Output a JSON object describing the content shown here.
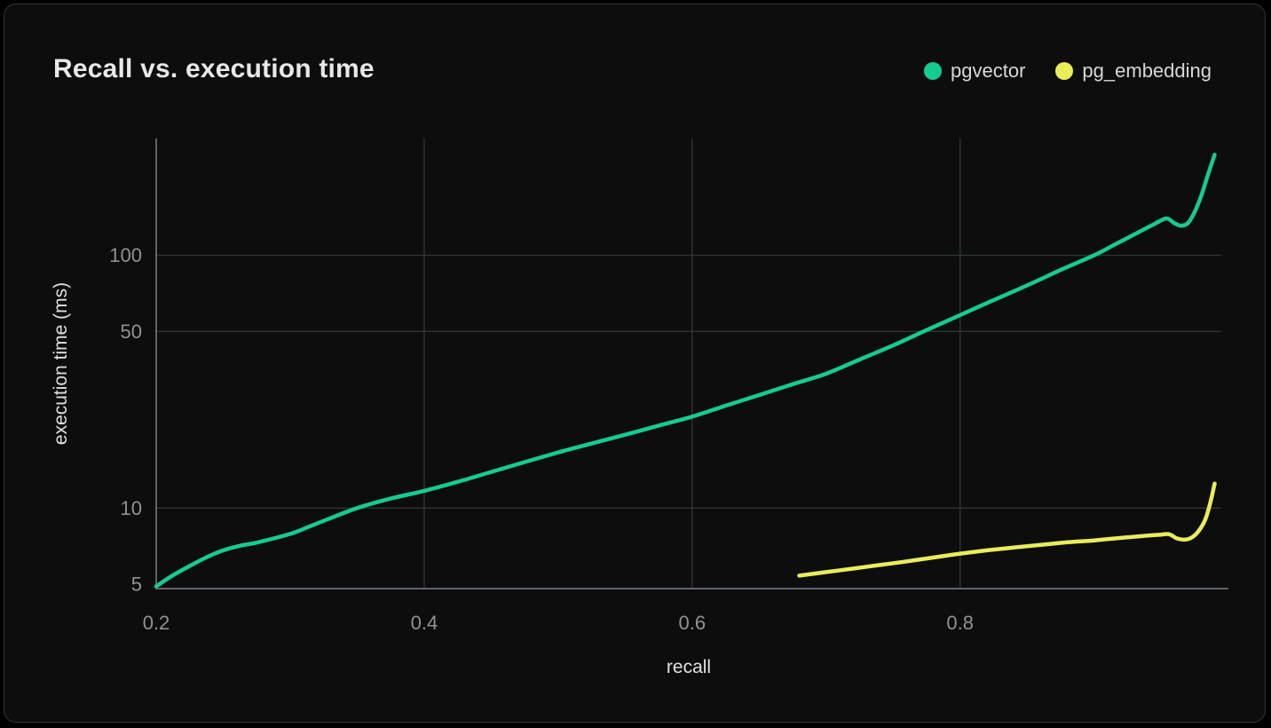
{
  "colors": {
    "page_background": "#000000",
    "card_background": "#0C0D0C",
    "card_border": "#323538",
    "title_text": "#E7E8E7",
    "legend_text": "#D6D8D7",
    "tick_text": "#8E9394",
    "axis_title_text": "#DFE1E0",
    "gridline": "#2F3437",
    "axis_line": "#5E646A",
    "pgvector_green": "#15CB92",
    "pg_embedding_yellow": "#EAED57"
  },
  "chart_data": {
    "type": "line",
    "title": "Recall vs. execution time",
    "xlabel": "recall",
    "ylabel": "execution time (ms)",
    "x_scale": "linear",
    "y_scale": "log",
    "xlim": [
      0.2,
      0.995
    ],
    "ylim": [
      4.8,
      290
    ],
    "x_ticks": [
      0.2,
      0.4,
      0.6,
      0.8
    ],
    "y_ticks": [
      5,
      10,
      50,
      100
    ],
    "x_gridlines": [
      0.4,
      0.6,
      0.8
    ],
    "y_gridlines": [
      10,
      50,
      100
    ],
    "grid": true,
    "legend_position": "top-right",
    "series": [
      {
        "name": "pgvector",
        "color": "#15CB92",
        "points": [
          [
            0.2,
            4.9
          ],
          [
            0.212,
            5.4
          ],
          [
            0.225,
            5.9
          ],
          [
            0.238,
            6.4
          ],
          [
            0.25,
            6.8
          ],
          [
            0.263,
            7.1
          ],
          [
            0.275,
            7.3
          ],
          [
            0.3,
            7.9
          ],
          [
            0.313,
            8.4
          ],
          [
            0.325,
            8.9
          ],
          [
            0.35,
            10.0
          ],
          [
            0.375,
            10.9
          ],
          [
            0.4,
            11.7
          ],
          [
            0.425,
            12.7
          ],
          [
            0.45,
            13.9
          ],
          [
            0.475,
            15.2
          ],
          [
            0.5,
            16.6
          ],
          [
            0.525,
            18.0
          ],
          [
            0.55,
            19.5
          ],
          [
            0.575,
            21.2
          ],
          [
            0.6,
            23.0
          ],
          [
            0.625,
            25.4
          ],
          [
            0.65,
            28.0
          ],
          [
            0.675,
            30.9
          ],
          [
            0.7,
            34.0
          ],
          [
            0.725,
            38.7
          ],
          [
            0.75,
            44.0
          ],
          [
            0.775,
            50.6
          ],
          [
            0.8,
            58.0
          ],
          [
            0.825,
            66.5
          ],
          [
            0.85,
            76.0
          ],
          [
            0.875,
            87.5
          ],
          [
            0.9,
            100.0
          ],
          [
            0.915,
            110.0
          ],
          [
            0.93,
            121.0
          ],
          [
            0.945,
            133.0
          ],
          [
            0.954,
            140.0
          ],
          [
            0.96,
            134.0
          ],
          [
            0.965,
            131.0
          ],
          [
            0.97,
            134.0
          ],
          [
            0.975,
            148.0
          ],
          [
            0.98,
            172.0
          ],
          [
            0.985,
            208.0
          ],
          [
            0.99,
            250.0
          ]
        ]
      },
      {
        "name": "pg_embedding",
        "color": "#EAED57",
        "points": [
          [
            0.68,
            5.4
          ],
          [
            0.7,
            5.58
          ],
          [
            0.72,
            5.76
          ],
          [
            0.74,
            5.95
          ],
          [
            0.76,
            6.15
          ],
          [
            0.78,
            6.37
          ],
          [
            0.8,
            6.6
          ],
          [
            0.82,
            6.8
          ],
          [
            0.84,
            6.98
          ],
          [
            0.86,
            7.15
          ],
          [
            0.88,
            7.32
          ],
          [
            0.9,
            7.45
          ],
          [
            0.92,
            7.62
          ],
          [
            0.94,
            7.78
          ],
          [
            0.95,
            7.85
          ],
          [
            0.956,
            7.88
          ],
          [
            0.962,
            7.58
          ],
          [
            0.968,
            7.5
          ],
          [
            0.973,
            7.65
          ],
          [
            0.978,
            8.1
          ],
          [
            0.983,
            9.0
          ],
          [
            0.987,
            10.6
          ],
          [
            0.99,
            12.5
          ]
        ]
      }
    ]
  }
}
